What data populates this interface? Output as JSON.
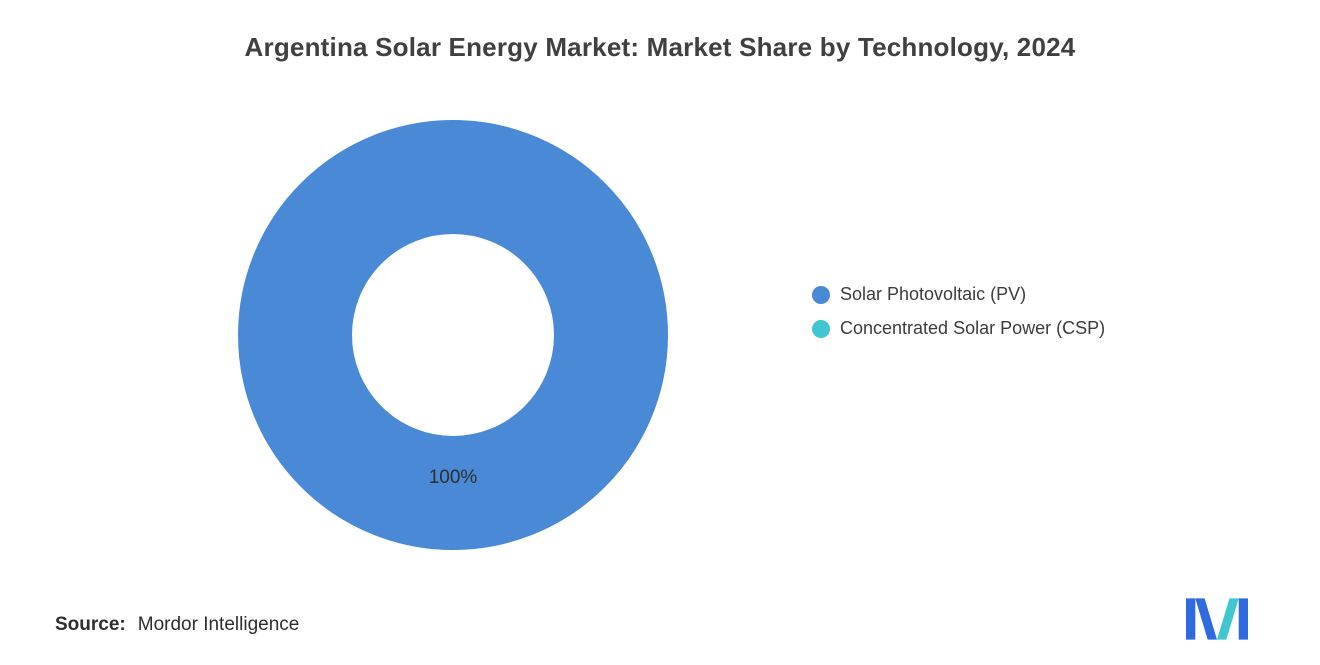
{
  "title": "Argentina Solar Energy Market: Market Share by Technology, 2024",
  "source": {
    "label": "Source:",
    "value": "Mordor Intelligence"
  },
  "legend": [
    {
      "label": "Solar Photovoltaic (PV)",
      "color": "#4989D6"
    },
    {
      "label": "Concentrated Solar Power (CSP)",
      "color": "#3FC6CF"
    }
  ],
  "logo": {
    "name": "mordor-intelligence-logo",
    "blue": "#2F6BDE",
    "teal": "#3FC6CF"
  },
  "chart_data": {
    "type": "pie",
    "subtype": "donut",
    "title": "Argentina Solar Energy Market: Market Share by Technology, 2024",
    "categories": [
      "Solar Photovoltaic (PV)",
      "Concentrated Solar Power (CSP)"
    ],
    "values": [
      100,
      0
    ],
    "unit": "%",
    "colors": [
      "#4989D6",
      "#3FC6CF"
    ],
    "data_labels": [
      "100%"
    ],
    "legend_position": "right",
    "background": "#ffffff"
  }
}
